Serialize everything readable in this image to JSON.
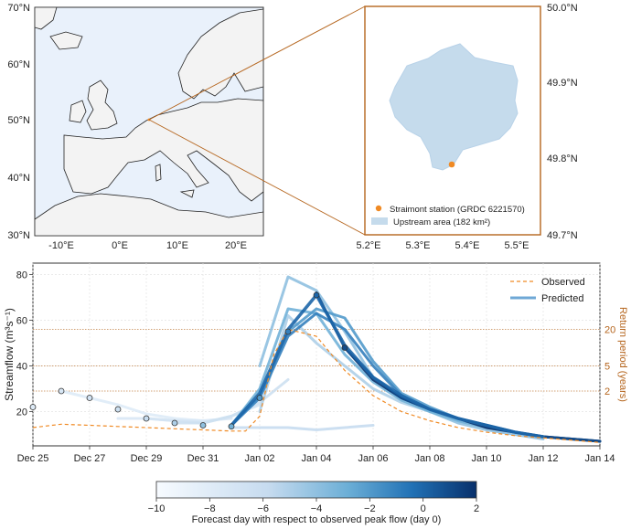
{
  "map_overview": {
    "lat_ticks": [
      "70°N",
      "60°N",
      "50°N",
      "40°N",
      "30°N"
    ],
    "lon_ticks": [
      "-10°E",
      "0°E",
      "10°E",
      "20°E"
    ]
  },
  "map_inset": {
    "lat_ticks": [
      "50.0°N",
      "49.9°N",
      "49.8°N",
      "49.7°N"
    ],
    "lon_ticks": [
      "5.2°E",
      "5.3°E",
      "5.4°E",
      "5.5°E"
    ],
    "legend": {
      "station": "Straimont station (GRDC 6221570)",
      "area": "Upstream area (182 km²)"
    },
    "colors": {
      "station": "#f08a24",
      "area": "#c5dbec",
      "frame": "#b5651d"
    }
  },
  "chart_data": {
    "type": "line",
    "ylabel": "Streamflow (m³s⁻¹)",
    "y2label": "Return period (years)",
    "xlim": [
      0,
      20
    ],
    "ylim": [
      5,
      85
    ],
    "x_ticks": [
      {
        "x": 0,
        "label": "Dec 25"
      },
      {
        "x": 2,
        "label": "Dec 27"
      },
      {
        "x": 4,
        "label": "Dec 29"
      },
      {
        "x": 6,
        "label": "Dec 31"
      },
      {
        "x": 8,
        "label": "Jan 02"
      },
      {
        "x": 10,
        "label": "Jan 04"
      },
      {
        "x": 12,
        "label": "Jan 06"
      },
      {
        "x": 14,
        "label": "Jan 08"
      },
      {
        "x": 16,
        "label": "Jan 10"
      },
      {
        "x": 18,
        "label": "Jan 12"
      },
      {
        "x": 20,
        "label": "Jan 14"
      }
    ],
    "y_ticks": [
      20,
      40,
      60,
      80
    ],
    "return_periods": [
      {
        "label": "2",
        "y": 29
      },
      {
        "label": "5",
        "y": 40
      },
      {
        "label": "20",
        "y": 56
      }
    ],
    "legend": {
      "observed": "Observed",
      "predicted": "Predicted"
    },
    "colors": {
      "observed": "#f08a24",
      "predicted": "#6fa8d6",
      "return_period": "#b5651d"
    },
    "observed": {
      "name": "Observed",
      "x": [
        0,
        1,
        2,
        3,
        4,
        5,
        6,
        7,
        7.5,
        8,
        8.5,
        9,
        10,
        11,
        12,
        13,
        14,
        15,
        16,
        17,
        18,
        19,
        20
      ],
      "y": [
        13,
        14.5,
        14,
        13.5,
        13,
        12.5,
        12,
        11.5,
        11.5,
        18,
        45,
        56,
        53,
        38,
        27,
        20,
        16,
        13,
        11,
        9.5,
        8.5,
        7.5,
        6.5
      ]
    },
    "forecasts": [
      {
        "day": -10,
        "x": [
          1,
          2,
          3,
          4,
          5,
          6
        ],
        "y": [
          29,
          26,
          23,
          19,
          17,
          16
        ]
      },
      {
        "day": -9,
        "x": [
          3,
          4,
          5,
          6,
          7
        ],
        "y": [
          17,
          17,
          16,
          16,
          17
        ]
      },
      {
        "day": -8,
        "x": [
          4,
          5,
          6,
          7,
          8
        ],
        "y": [
          17,
          16,
          15,
          18,
          23
        ]
      },
      {
        "day": -7,
        "x": [
          5,
          6,
          7,
          8,
          9
        ],
        "y": [
          15,
          15,
          18,
          24,
          34
        ]
      },
      {
        "day": -6,
        "x": [
          7,
          8,
          9,
          10,
          11,
          12
        ],
        "y": [
          13,
          13,
          13,
          12,
          13,
          14
        ]
      },
      {
        "day": -5,
        "x": [
          8,
          9,
          10,
          11,
          12,
          13,
          14,
          15,
          16,
          17,
          18,
          19,
          20
        ],
        "y": [
          20,
          62,
          50,
          40,
          30,
          24,
          20,
          16,
          13,
          11,
          9,
          8,
          7
        ]
      },
      {
        "day": -4,
        "x": [
          8,
          9,
          10,
          11,
          12,
          13,
          14,
          15,
          16,
          17,
          18
        ],
        "y": [
          40,
          79,
          73,
          55,
          35,
          26,
          20,
          15,
          12,
          10,
          8
        ]
      },
      {
        "day": -3,
        "x": [
          7,
          8,
          9,
          10,
          11,
          12,
          13,
          14,
          15,
          16,
          17,
          18
        ],
        "y": [
          14,
          30,
          65,
          63,
          45,
          33,
          25,
          20,
          16,
          13,
          11,
          9
        ]
      },
      {
        "day": -2,
        "x": [
          7,
          8,
          9,
          10,
          11,
          12,
          13,
          14,
          15,
          16,
          17,
          18
        ],
        "y": [
          14,
          27,
          55,
          65,
          61,
          42,
          28,
          22,
          17,
          14,
          11,
          9
        ]
      },
      {
        "day": -1,
        "x": [
          7,
          8,
          9,
          10,
          11,
          12,
          13,
          14,
          15,
          16,
          17,
          18
        ],
        "y": [
          14,
          26,
          53,
          63,
          56,
          40,
          27,
          21,
          17,
          14,
          11,
          9
        ]
      },
      {
        "day": 0,
        "x": [
          7,
          8,
          9,
          10,
          11,
          12,
          13,
          14,
          15,
          16,
          17,
          18
        ],
        "y": [
          14,
          28,
          56,
          71,
          49,
          35,
          27,
          21,
          17,
          14,
          11,
          9
        ]
      },
      {
        "day": 1,
        "x": [
          10,
          11,
          12,
          13,
          14,
          15,
          16,
          17,
          18,
          19,
          20
        ],
        "y": [
          72,
          48,
          35,
          26,
          21,
          17,
          14,
          11,
          9,
          8,
          7
        ]
      },
      {
        "day": 2,
        "x": [
          11,
          12,
          13,
          14,
          15,
          16,
          17,
          18,
          19,
          20
        ],
        "y": [
          48,
          34,
          26,
          21,
          17,
          13,
          11,
          9,
          8,
          7
        ]
      }
    ],
    "markers": {
      "x": [
        0,
        1,
        2,
        3,
        4,
        5,
        6,
        7,
        8,
        9,
        10,
        11
      ],
      "y": [
        22,
        29,
        26,
        21,
        17,
        15,
        14,
        13.5,
        26,
        55,
        71,
        48
      ],
      "day": [
        -10,
        -9,
        -8,
        -7,
        -6,
        -5,
        -4,
        -3,
        -2,
        -1,
        0,
        1
      ]
    },
    "colorbar": {
      "label": "Forecast day with respect to observed peak flow (day 0)",
      "min": -10,
      "max": 2,
      "ticks": [
        -10,
        -8,
        -6,
        -4,
        -2,
        0,
        2
      ]
    }
  }
}
